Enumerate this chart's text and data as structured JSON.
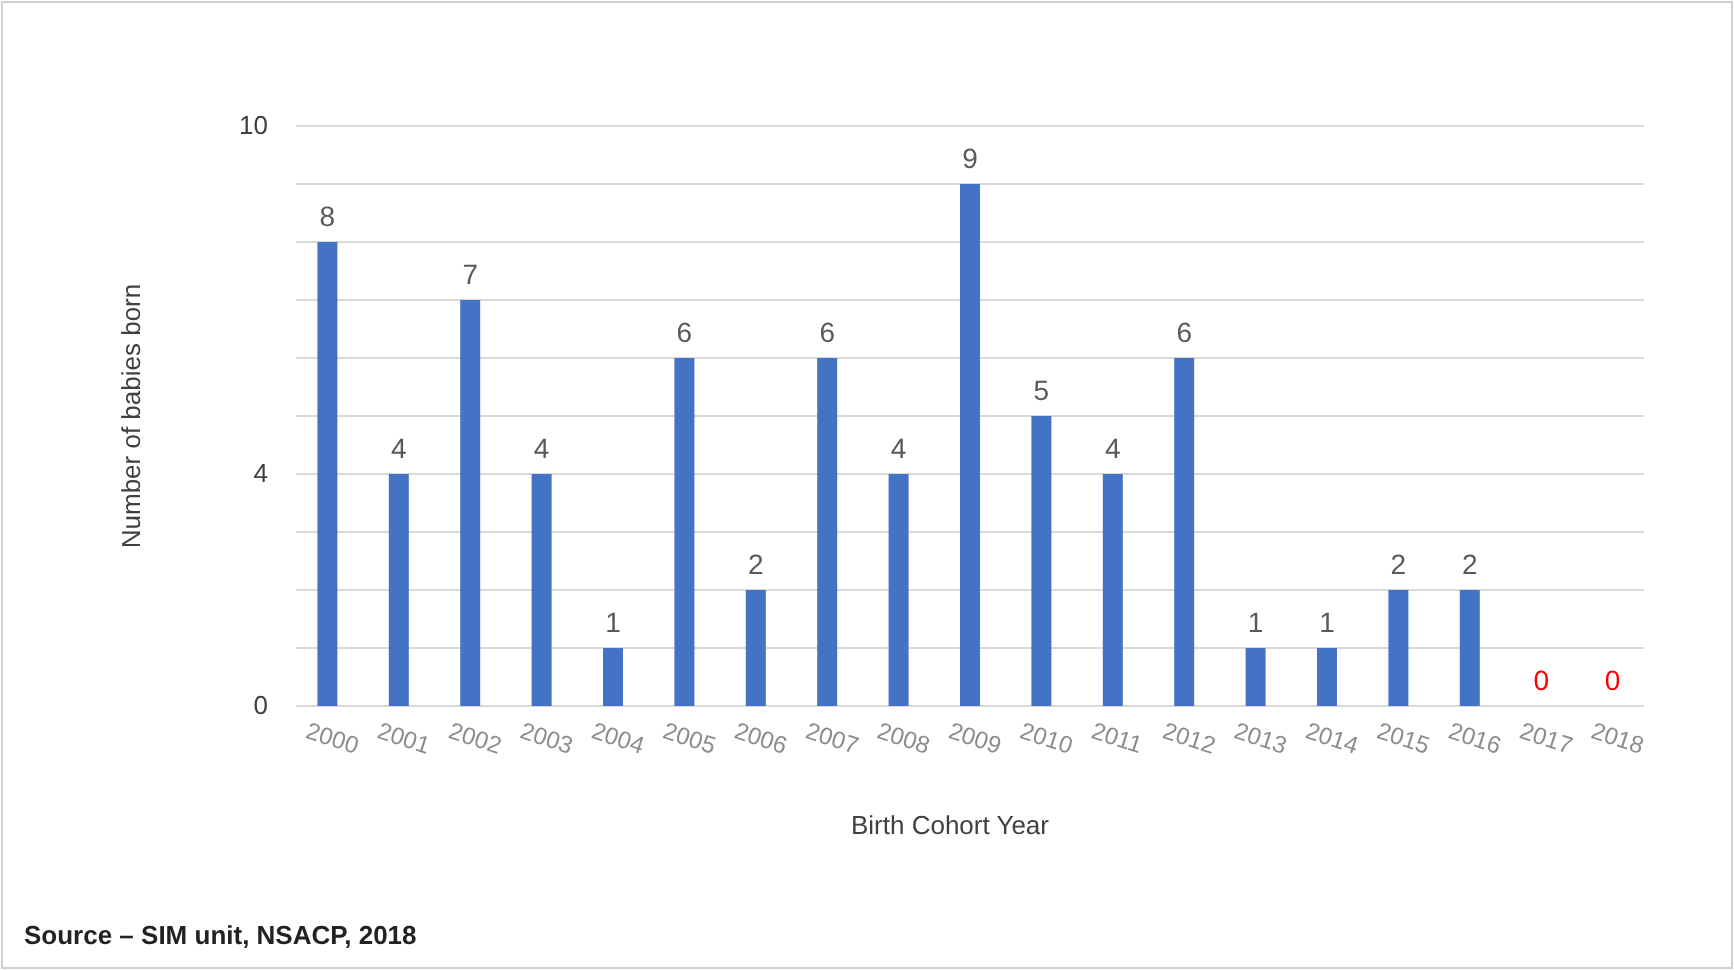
{
  "chart_data": {
    "type": "bar",
    "xlabel": "Birth Cohort Year",
    "ylabel": "Number of babies born",
    "categories": [
      "2000",
      "2001",
      "2002",
      "2003",
      "2004",
      "2005",
      "2006",
      "2007",
      "2008",
      "2009",
      "2010",
      "2011",
      "2012",
      "2013",
      "2014",
      "2015",
      "2016",
      "2017",
      "2018"
    ],
    "values": [
      8,
      4,
      7,
      4,
      1,
      6,
      2,
      6,
      4,
      9,
      5,
      4,
      6,
      1,
      1,
      2,
      2,
      0,
      0
    ],
    "colors": [
      "#4472c4",
      "#4472c4",
      "#4472c4",
      "#4472c4",
      "#4472c4",
      "#4472c4",
      "#4472c4",
      "#4472c4",
      "#4472c4",
      "#4472c4",
      "#4472c4",
      "#4472c4",
      "#4472c4",
      "#4472c4",
      "#4472c4",
      "#4472c4",
      "#4472c4",
      "#ff0000",
      "#ff0000"
    ],
    "ylim": [
      0,
      10
    ],
    "yticks": [
      0,
      {
        "value": 1,
        "label": null
      },
      {
        "value": 2,
        "label": null
      },
      {
        "value": 3,
        "label": null
      },
      4,
      {
        "value": 5,
        "label": null
      },
      {
        "value": 6,
        "label": null
      },
      {
        "value": 7,
        "label": null
      },
      {
        "value": 8,
        "label": null
      },
      {
        "value": 9,
        "label": null
      },
      10
    ],
    "grid": "y",
    "data_labels": true,
    "annotations": [
      "Source – SIM unit, NSACP, 2018"
    ]
  }
}
